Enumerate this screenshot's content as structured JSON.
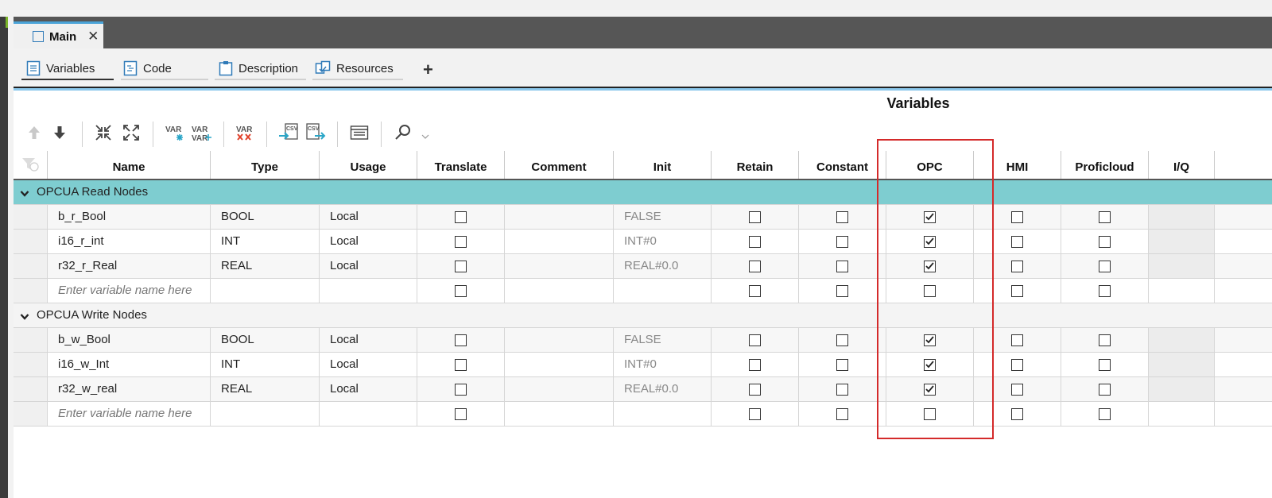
{
  "document_tab": {
    "label": "Main",
    "close_symbol": "✕"
  },
  "view_tabs": [
    {
      "label": "Variables",
      "icon": "variables-sheet-icon",
      "active": true
    },
    {
      "label": "Code",
      "icon": "code-sheet-icon",
      "active": false
    },
    {
      "label": "Description",
      "icon": "clipboard-icon",
      "active": false
    },
    {
      "label": "Resources",
      "icon": "resources-icon",
      "active": false
    }
  ],
  "add_tab_symbol": "+",
  "editor": {
    "title": "Variables"
  },
  "toolbar": {
    "buttons": [
      "move-up-icon",
      "move-down-icon",
      "collapse-all-icon",
      "expand-all-icon",
      "add-variable-icon",
      "add-multiple-variables-icon",
      "delete-variables-icon",
      "import-csv-icon",
      "export-csv-icon",
      "column-layout-icon",
      "search-icon"
    ],
    "var_text": "VAR",
    "csv_text": "CSV"
  },
  "columns": [
    "",
    "Name",
    "Type",
    "Usage",
    "Translate",
    "Comment",
    "Init",
    "Retain",
    "Constant",
    "OPC",
    "",
    "HMI",
    "Proficloud",
    "I/Q"
  ],
  "groups": [
    {
      "label": "OPCUA Read Nodes",
      "expanded": true,
      "highlighted": true,
      "rows": [
        {
          "name": "b_r_Bool",
          "type": "BOOL",
          "usage": "Local",
          "comment": "",
          "init": "FALSE",
          "translate": false,
          "retain": false,
          "constant": false,
          "opc": true,
          "hmi": false,
          "proficloud": false
        },
        {
          "name": "i16_r_int",
          "type": "INT",
          "usage": "Local",
          "comment": "",
          "init": "INT#0",
          "translate": false,
          "retain": false,
          "constant": false,
          "opc": true,
          "hmi": false,
          "proficloud": false
        },
        {
          "name": "r32_r_Real",
          "type": "REAL",
          "usage": "Local",
          "comment": "",
          "init": "REAL#0.0",
          "translate": false,
          "retain": false,
          "constant": false,
          "opc": true,
          "hmi": false,
          "proficloud": false
        }
      ],
      "placeholder": "Enter variable name here"
    },
    {
      "label": "OPCUA Write Nodes",
      "expanded": true,
      "highlighted": false,
      "rows": [
        {
          "name": "b_w_Bool",
          "type": "BOOL",
          "usage": "Local",
          "comment": "",
          "init": "FALSE",
          "translate": false,
          "retain": false,
          "constant": false,
          "opc": true,
          "hmi": false,
          "proficloud": false
        },
        {
          "name": "i16_w_Int",
          "type": "INT",
          "usage": "Local",
          "comment": "",
          "init": "INT#0",
          "translate": false,
          "retain": false,
          "constant": false,
          "opc": true,
          "hmi": false,
          "proficloud": false
        },
        {
          "name": "r32_w_real",
          "type": "REAL",
          "usage": "Local",
          "comment": "",
          "init": "REAL#0.0",
          "translate": false,
          "retain": false,
          "constant": false,
          "opc": true,
          "hmi": false,
          "proficloud": false
        }
      ],
      "placeholder": "Enter variable name here"
    }
  ],
  "colors": {
    "group_highlight": "#7ecdd0",
    "annotation_box": "#d42a2a",
    "active_tab_accent": "#4aa3d8"
  }
}
